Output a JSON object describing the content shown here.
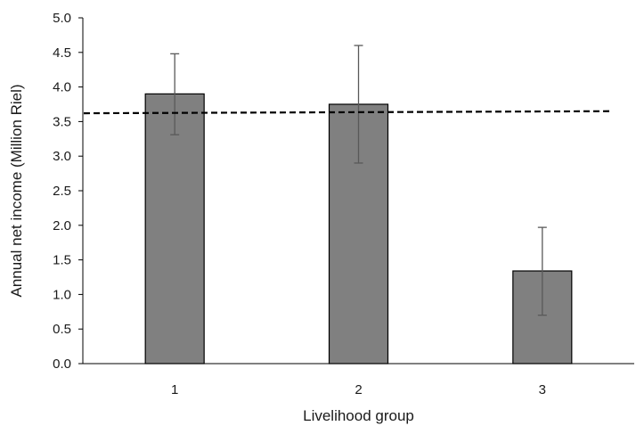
{
  "chart_data": {
    "type": "bar",
    "xlabel": "Livelihood group",
    "ylabel": "Annual net income (Million Riel)",
    "categories": [
      "1",
      "2",
      "3"
    ],
    "values": [
      3.9,
      3.75,
      1.34
    ],
    "error_low": [
      3.31,
      2.9,
      0.7
    ],
    "error_high": [
      4.48,
      4.6,
      1.97
    ],
    "reference_line": {
      "y_start": 3.62,
      "y_end": 3.65,
      "style": "dashed"
    },
    "ylim": [
      0,
      5
    ],
    "yticks": [
      "0.0",
      "0.5",
      "1.0",
      "1.5",
      "2.0",
      "2.5",
      "3.0",
      "3.5",
      "4.0",
      "4.5",
      "5.0"
    ],
    "grid": false,
    "legend": "none",
    "colors": {
      "bar_fill": "#808080",
      "bar_stroke": "#000000",
      "error_bar": "#595959",
      "reference_line": "#000000",
      "axis": "#000000"
    }
  }
}
